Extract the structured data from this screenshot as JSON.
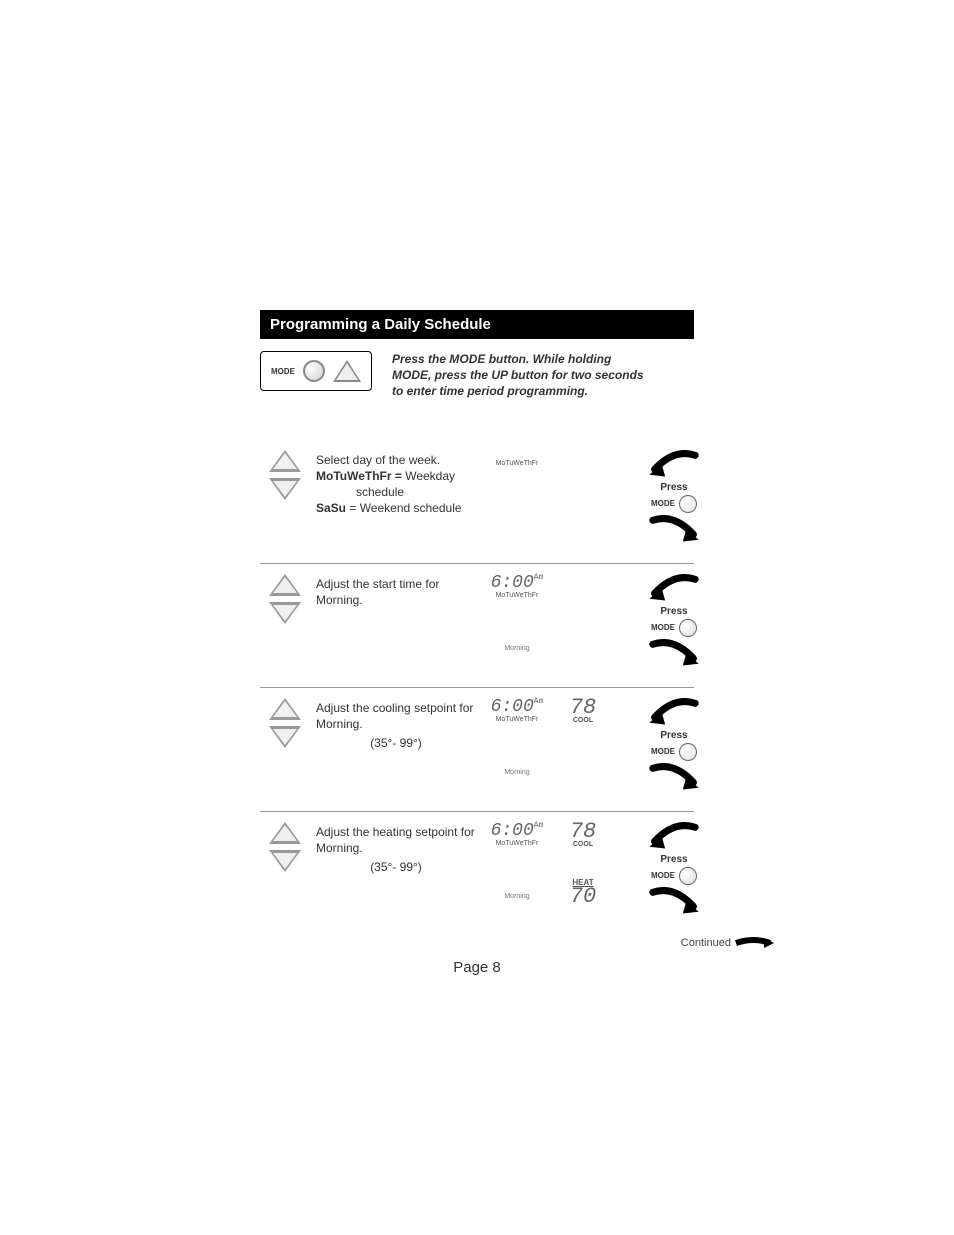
{
  "header": "Programming a Daily Schedule",
  "intro": {
    "mode_label": "MODE",
    "text": "Press the MODE button. While holding MODE, press the UP button for two seconds to enter time period programming."
  },
  "steps": [
    {
      "text_html": "Select day of the week.<br><span class='bold'>MoTuWeThFr =</span> Weekday<br><span class='indent'>schedule</span><br><span class='bold'>SaSu</span> = Weekend schedule",
      "lcd": {
        "days": "MoTuWeThFr",
        "time": "",
        "period": "",
        "cool_temp": "",
        "heat_temp": ""
      },
      "press_buttons": 1
    },
    {
      "text_html": "Adjust the start time for Morning.",
      "lcd": {
        "days": "MoTuWeThFr",
        "time": "6:00",
        "ampm": "Am",
        "period": "Morning",
        "cool_temp": "",
        "heat_temp": ""
      },
      "press_buttons": 1
    },
    {
      "text_html": "Adjust the cooling setpoint for Morning.<div class='range'>(35°- 99°)</div>",
      "lcd": {
        "days": "MoTuWeThFr",
        "time": "6:00",
        "ampm": "Am",
        "period": "Morning",
        "cool_temp": "78",
        "cool_label": "COOL",
        "heat_temp": ""
      },
      "press_buttons": 1
    },
    {
      "text_html": "Adjust the heating setpoint for Morning.<div class='range'>(35°- 99°)</div>",
      "lcd": {
        "days": "MoTuWeThFr",
        "time": "6:00",
        "ampm": "Am",
        "period": "Morning",
        "cool_temp": "78",
        "cool_label": "COOL",
        "heat_temp": "70",
        "heat_label": "HEAT"
      },
      "press_buttons": 1
    }
  ],
  "press_label": "Press",
  "mode_button_label": "MODE",
  "continued": "Continued",
  "page_label": "Page 8",
  "colors": {
    "header_bg": "#000000",
    "header_fg": "#ffffff",
    "text": "#333333",
    "lcd_gray": "#666666",
    "triangle": "#999999"
  }
}
